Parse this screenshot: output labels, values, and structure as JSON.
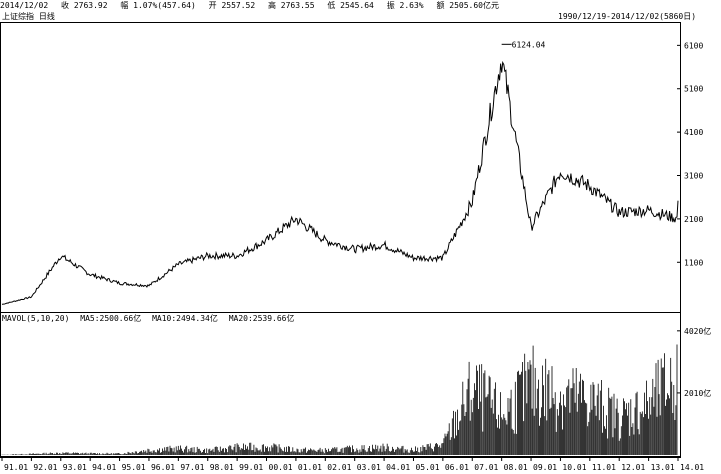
{
  "header": {
    "date": "2014/12/02",
    "open": "收 2763.92",
    "change": "幅 1.07%(457.64)",
    "avg": "开 2557.52",
    "high": "高 2763.55",
    "low": "低 2545.64",
    "amp": "振 2.63%",
    "amount": "额 2505.60亿元"
  },
  "subheader": {
    "title": "上证综指 日线",
    "range": "1990/12/19-2014/12/02(5860日)"
  },
  "volume_legend": {
    "label": "MAVOL(5,10,20)",
    "ma1": "MA5:2500.66亿",
    "ma2": "MA10:2494.34亿",
    "ma3": "MA20:2539.66亿"
  },
  "chart_data": [
    {
      "type": "line",
      "title": "",
      "ylabel": "",
      "ylim": [
        0,
        6500
      ],
      "yticks": [
        1100,
        2100,
        3100,
        4100,
        5100,
        6100
      ],
      "peak_label": "6124.04",
      "peak_value": 6124.04,
      "x": [
        "91.01",
        "92.01",
        "93.01",
        "94.01",
        "95.01",
        "96.01",
        "97.01",
        "98.01",
        "99.01",
        "00.01",
        "01.01",
        "02.01",
        "03.01",
        "04.01",
        "05.01",
        "06.01",
        "07.01",
        "08.01",
        "09.01",
        "10.01",
        "11.01",
        "12.01",
        "13.01",
        "14.01"
      ],
      "series": [
        {
          "values": [
            130,
            300,
            1250,
            820,
            620,
            560,
            1050,
            1250,
            1250,
            1600,
            2100,
            1600,
            1400,
            1500,
            1200,
            1200,
            2500,
            5800,
            1900,
            3200,
            2850,
            2250,
            2300,
            2100
          ]
        }
      ]
    },
    {
      "type": "bar",
      "title": "",
      "ylabel": "",
      "ylim": [
        0,
        4500
      ],
      "yticks_labels": [
        "2010亿",
        "4020亿"
      ],
      "yticks": [
        2010,
        4020
      ],
      "x": [
        "91.01",
        "92.01",
        "93.01",
        "94.01",
        "95.01",
        "96.01",
        "97.01",
        "98.01",
        "99.01",
        "00.01",
        "01.01",
        "02.01",
        "03.01",
        "04.01",
        "05.01",
        "06.01",
        "07.01",
        "08.01",
        "09.01",
        "10.01",
        "11.01",
        "12.01",
        "13.01",
        "14.01"
      ],
      "series": [
        {
          "values": [
            5,
            40,
            80,
            60,
            50,
            200,
            250,
            180,
            300,
            320,
            200,
            180,
            250,
            300,
            200,
            400,
            2600,
            1600,
            2800,
            2400,
            2200,
            1500,
            2000,
            3200
          ]
        }
      ]
    }
  ]
}
